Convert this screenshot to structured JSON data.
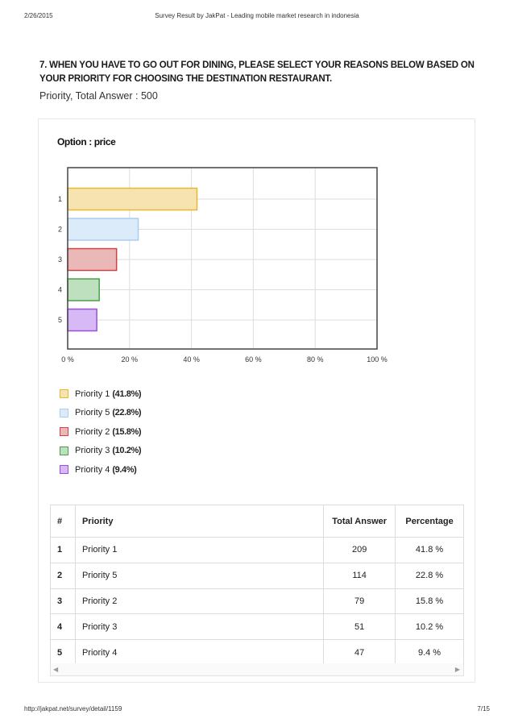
{
  "header": {
    "date": "2/26/2015",
    "title": "Survey Result by JakPat - Leading mobile market research in indonesia"
  },
  "question": {
    "text": "7. WHEN YOU HAVE TO GO OUT FOR DINING, PLEASE SELECT YOUR REASONS BELOW BASED ON YOUR PRIORITY FOR CHOOSING THE DESTINATION RESTAURANT.",
    "subtitle": "Priority, Total Answer : 500"
  },
  "option_title": "Option : price",
  "chart_data": {
    "type": "bar",
    "orientation": "horizontal",
    "categories": [
      "1",
      "2",
      "3",
      "4",
      "5"
    ],
    "values": [
      41.8,
      22.8,
      15.8,
      10.2,
      9.4
    ],
    "xlim": [
      0,
      100
    ],
    "x_ticks": [
      "0 %",
      "20 %",
      "40 %",
      "60 %",
      "80 %",
      "100 %"
    ],
    "grid": true,
    "colors": [
      "#e8b830",
      "#a8cdf0",
      "#cc4444",
      "#4aa04a",
      "#9b4de0"
    ],
    "fills": [
      "#f7e3b0",
      "#dcebfa",
      "#ebb8b8",
      "#bfe0bf",
      "#d6b9f5"
    ]
  },
  "legend": [
    {
      "label": "Priority 1",
      "pct": "(41.8%)",
      "color": "#e8b830",
      "fill": "#f7e3b0"
    },
    {
      "label": "Priority 5",
      "pct": "(22.8%)",
      "color": "#a8cdf0",
      "fill": "#dcebfa"
    },
    {
      "label": "Priority 2",
      "pct": "(15.8%)",
      "color": "#cc4444",
      "fill": "#ebb8b8"
    },
    {
      "label": "Priority 3",
      "pct": "(10.2%)",
      "color": "#4aa04a",
      "fill": "#bfe0bf"
    },
    {
      "label": "Priority 4",
      "pct": "(9.4%)",
      "color": "#9b4de0",
      "fill": "#d6b9f5"
    }
  ],
  "table": {
    "headers": [
      "#",
      "Priority",
      "Total Answer",
      "Percentage"
    ],
    "rows": [
      [
        "1",
        "Priority 1",
        "209",
        "41.8 %"
      ],
      [
        "2",
        "Priority 5",
        "114",
        "22.8 %"
      ],
      [
        "3",
        "Priority 2",
        "79",
        "15.8 %"
      ],
      [
        "4",
        "Priority 3",
        "51",
        "10.2 %"
      ],
      [
        "5",
        "Priority 4",
        "47",
        "9.4 %"
      ]
    ]
  },
  "footer": {
    "url": "http://jakpat.net/survey/detail/1159",
    "page": "7/15"
  }
}
